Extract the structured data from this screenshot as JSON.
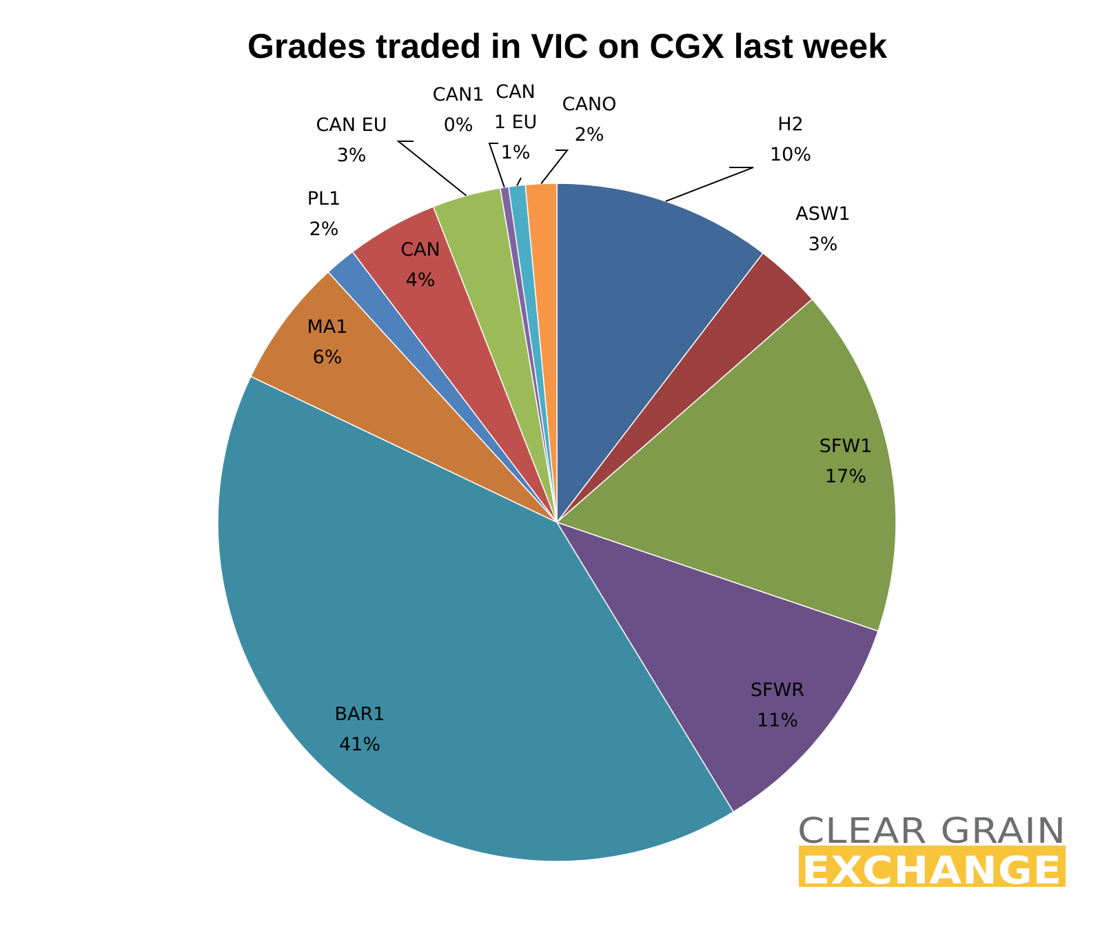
{
  "chart_data": {
    "type": "pie",
    "title": "Grades traded in VIC on CGX last week",
    "start_angle_deg": 0,
    "direction": "clockwise",
    "slices": [
      {
        "label": "H2",
        "pct_label": "10%",
        "value": 10.5,
        "color": "#406899"
      },
      {
        "label": "ASW1",
        "pct_label": "3%",
        "value": 3.2,
        "color": "#9c413f"
      },
      {
        "label": "SFW1",
        "pct_label": "17%",
        "value": 16.8,
        "color": "#7f9b4b"
      },
      {
        "label": "SFWR",
        "pct_label": "11%",
        "value": 11.2,
        "color": "#6a5087"
      },
      {
        "label": "BAR1",
        "pct_label": "41%",
        "value": 41.2,
        "color": "#3d8ca4"
      },
      {
        "label": "MA1",
        "pct_label": "6%",
        "value": 6.2,
        "color": "#c97a3a"
      },
      {
        "label": "PL1",
        "pct_label": "2%",
        "value": 1.5,
        "color": "#4f81bd"
      },
      {
        "label": "CAN",
        "pct_label": "4%",
        "value": 4.4,
        "color": "#c0504d"
      },
      {
        "label": "CAN EU",
        "pct_label": "3%",
        "value": 3.3,
        "color": "#9bbb59"
      },
      {
        "label": "CAN1",
        "pct_label": "0%",
        "value": 0.4,
        "color": "#8064a2"
      },
      {
        "label": "CAN 1 EU",
        "pct_label": "1%",
        "value": 0.8,
        "color": "#4bacc6"
      },
      {
        "label": "CANO",
        "pct_label": "2%",
        "value": 1.5,
        "color": "#f79646"
      }
    ]
  },
  "logo": {
    "line1": "CLEAR GRAIN",
    "line2": "EXCHANGE",
    "text_color": "#6d6e70",
    "band_color": "#f8c43a"
  }
}
